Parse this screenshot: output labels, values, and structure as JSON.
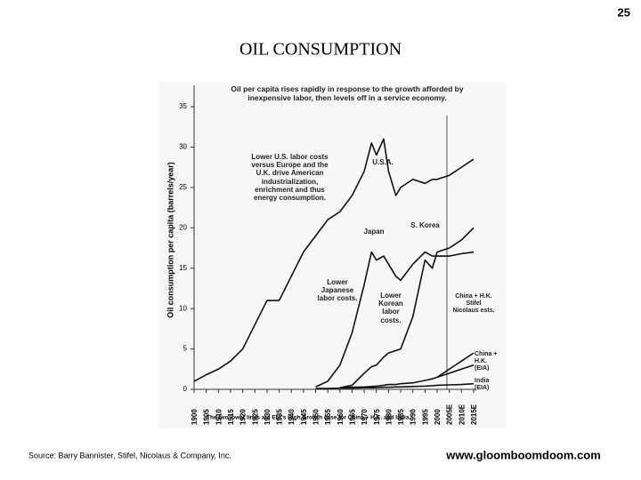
{
  "page_number": "25",
  "heading": "OIL  CONSUMPTION",
  "source": "Source: Barry Bannister, Stifel, Nicolaus & Company, Inc.",
  "website": "www.gloomboomdoom.com",
  "chart_data": {
    "type": "line",
    "title": "Oil per capita rises rapidly in response to the growth afforded by inexpensive labor, then levels off in a service economy.",
    "y_label": "Oil consumption per capita (barrels/year)",
    "footnote": "The two lower lines are EIA's High Growth case for China + H.K. and India.",
    "x": [
      1900,
      1905,
      1910,
      1915,
      1920,
      1925,
      1930,
      1935,
      1940,
      1945,
      1950,
      1955,
      1960,
      1965,
      1970,
      1973,
      1975,
      1978,
      1980,
      1983,
      1985,
      1990,
      1995,
      1998,
      2000,
      2005,
      2010,
      2015
    ],
    "xlim": [
      1900,
      2015
    ],
    "xticks": [
      1900,
      1905,
      1910,
      1915,
      1920,
      1925,
      1930,
      1935,
      1940,
      1945,
      1950,
      1955,
      1960,
      1965,
      1970,
      1975,
      1980,
      1985,
      1990,
      1995,
      2000,
      {
        "value": 2005,
        "label": "2005E"
      },
      {
        "value": 2010,
        "label": "2010E"
      },
      {
        "value": 2015,
        "label": "2015E"
      }
    ],
    "ylim": [
      0,
      35
    ],
    "yticks": [
      0,
      5,
      10,
      15,
      20,
      25,
      30,
      35
    ],
    "series": [
      {
        "name": "U.S.A.",
        "color": "#111111",
        "values": [
          1,
          1.8,
          2.5,
          3.5,
          5,
          8,
          11,
          11,
          14,
          17,
          19,
          21,
          22,
          24,
          27,
          30.5,
          29,
          31,
          27,
          24,
          25,
          26,
          25.5,
          26,
          26,
          26.5,
          27.5,
          28.5
        ]
      },
      {
        "name": "Japan",
        "color": "#111111",
        "values": [
          null,
          null,
          null,
          null,
          null,
          null,
          null,
          null,
          null,
          null,
          0.3,
          1,
          3,
          7,
          13,
          17,
          16,
          16.5,
          15.5,
          14,
          13.5,
          15.5,
          17,
          16.5,
          16.5,
          16.5,
          16.8,
          17
        ]
      },
      {
        "name": "S. Korea",
        "color": "#111111",
        "values": [
          null,
          null,
          null,
          null,
          null,
          null,
          null,
          null,
          null,
          null,
          null,
          null,
          0.2,
          0.5,
          2,
          2.8,
          3,
          4,
          4.5,
          4.8,
          5,
          9,
          16,
          15,
          17,
          17.5,
          18.5,
          20
        ]
      },
      {
        "name": "China + H.K. Stifel Nicolaus ests.",
        "color": "#111111",
        "values": [
          null,
          null,
          null,
          null,
          null,
          null,
          null,
          null,
          null,
          null,
          null,
          null,
          null,
          null,
          null,
          null,
          null,
          null,
          null,
          null,
          null,
          null,
          null,
          null,
          1.5,
          2.5,
          3.5,
          4.5
        ]
      },
      {
        "name": "China + H.K. (EIA)",
        "color": "#111111",
        "values": [
          null,
          null,
          null,
          null,
          null,
          null,
          null,
          null,
          null,
          null,
          null,
          null,
          0.2,
          0.25,
          0.3,
          0.35,
          0.4,
          0.5,
          0.6,
          0.6,
          0.7,
          0.8,
          1.1,
          1.3,
          1.5,
          2,
          2.5,
          3
        ]
      },
      {
        "name": "India (EIA)",
        "color": "#111111",
        "values": [
          null,
          null,
          null,
          null,
          null,
          null,
          null,
          null,
          null,
          null,
          0.1,
          0.1,
          0.15,
          0.15,
          0.2,
          0.2,
          0.2,
          0.25,
          0.25,
          0.3,
          0.3,
          0.35,
          0.4,
          0.45,
          0.5,
          0.55,
          0.6,
          0.7
        ]
      }
    ],
    "annotations": [
      "Lower U.S. labor costs versus Europe and the U.K. drive American industrialization, enrichment and thus energy consumption.",
      "Lower Japanese labor costs.",
      "Lower Korean labor costs."
    ]
  }
}
